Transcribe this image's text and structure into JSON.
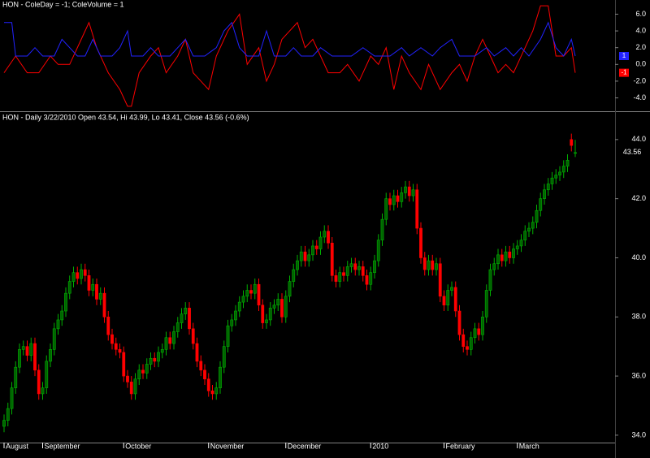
{
  "chart_data": [
    {
      "type": "line",
      "title": "HON - ColeDay = -1; ColeVolume = 1",
      "ylim": [
        -5.5,
        7.5
      ],
      "yticks": [
        {
          "value": 6,
          "label": "6.0"
        },
        {
          "value": 4,
          "label": "4.0"
        },
        {
          "value": 2,
          "label": "2.0"
        },
        {
          "value": 0,
          "label": "0.0"
        },
        {
          "value": -2,
          "label": "-2.0"
        },
        {
          "value": -4,
          "label": "-4.0"
        }
      ],
      "series": [
        {
          "color": "#ff0000",
          "x": [
            0,
            3,
            6,
            9,
            12,
            14,
            17,
            20,
            22,
            24,
            27,
            30,
            32,
            33,
            35,
            38,
            40,
            42,
            45,
            47,
            49,
            51,
            53,
            55,
            58,
            61,
            63,
            66,
            68,
            70,
            72,
            74,
            76,
            78,
            80,
            82,
            84,
            87,
            89,
            92,
            95,
            97,
            99,
            101,
            103,
            105,
            108,
            110,
            113,
            116,
            118,
            120,
            122,
            124,
            126,
            128,
            130,
            132,
            135,
            137,
            139,
            141,
            143,
            145,
            147,
            148
          ],
          "values": [
            -1,
            1,
            -1,
            -1,
            1,
            0,
            0,
            3,
            5,
            2,
            -1,
            -3,
            -5,
            -5,
            -1,
            1,
            2,
            -1,
            1,
            3,
            -1,
            -2,
            -3,
            1,
            4,
            6,
            0,
            2,
            -2,
            0,
            3,
            4,
            5,
            2,
            3,
            1,
            -1,
            -1,
            0,
            -2,
            1,
            0,
            2,
            -3,
            1,
            -1,
            -3,
            0,
            -3,
            -1,
            0,
            -2,
            1,
            3,
            1,
            -1,
            0,
            -1,
            2,
            4,
            7,
            7,
            1,
            1,
            2,
            -1
          ]
        },
        {
          "color": "#2222ff",
          "x": [
            0,
            2,
            3,
            6,
            8,
            10,
            13,
            15,
            17,
            19,
            21,
            23,
            25,
            28,
            30,
            32,
            33,
            36,
            38,
            40,
            43,
            45,
            47,
            49,
            52,
            55,
            57,
            59,
            61,
            63,
            66,
            68,
            70,
            73,
            75,
            77,
            80,
            82,
            85,
            90,
            93,
            96,
            100,
            103,
            105,
            108,
            111,
            113,
            116,
            118,
            122,
            125,
            127,
            130,
            132,
            134,
            136,
            139,
            141,
            143,
            145,
            147,
            148
          ],
          "values": [
            5,
            5,
            1,
            1,
            2,
            1,
            1,
            3,
            2,
            1,
            1,
            3,
            1,
            1,
            2,
            4,
            1,
            1,
            2,
            1,
            1,
            2,
            3,
            1,
            1,
            2,
            4,
            5,
            2,
            1,
            1,
            4,
            1,
            1,
            2,
            1,
            1,
            2,
            1,
            1,
            2,
            1,
            1,
            2,
            1,
            2,
            1,
            2,
            3,
            1,
            1,
            2,
            1,
            2,
            1,
            2,
            1,
            3,
            5,
            2,
            1,
            3,
            1
          ]
        }
      ]
    },
    {
      "type": "candlestick",
      "title": "HON - Daily 3/22/2010 Open 43.54, Hi 43.99, Lo 43.41, Close 43.56 (-0.6%)",
      "ylim": [
        33.75,
        44.93
      ],
      "yticks": [
        {
          "value": 34,
          "label": "34.0"
        },
        {
          "value": 36,
          "label": "36.0"
        },
        {
          "value": 38,
          "label": "38.0"
        },
        {
          "value": 40,
          "label": "40.0"
        },
        {
          "value": 42,
          "label": "42.0"
        },
        {
          "value": 44,
          "label": "44.0"
        }
      ],
      "up_color": "#00b000",
      "down_color": "#ff0000",
      "month_labels": [
        "August",
        "September",
        "October",
        "November",
        "December",
        "2010",
        "February",
        "March"
      ],
      "month_starts": [
        0,
        10,
        31,
        53,
        73,
        95,
        114,
        133
      ],
      "open": [
        34.3,
        34.5,
        34.9,
        35.6,
        36.3,
        36.9,
        37.0,
        36.7,
        37.1,
        36.2,
        35.4,
        35.6,
        36.5,
        36.9,
        37.6,
        37.9,
        38.2,
        38.8,
        39.2,
        39.5,
        39.3,
        39.6,
        39.4,
        38.9,
        39.1,
        38.6,
        38.8,
        38.0,
        37.4,
        37.1,
        36.9,
        36.8,
        36.0,
        35.8,
        35.4,
        35.9,
        36.2,
        36.1,
        36.4,
        36.6,
        36.5,
        36.8,
        36.9,
        37.3,
        37.1,
        37.5,
        37.8,
        38.1,
        38.3,
        37.6,
        37.1,
        36.5,
        36.2,
        35.9,
        35.5,
        35.4,
        35.6,
        36.3,
        37.0,
        37.7,
        37.9,
        38.2,
        38.5,
        38.7,
        38.9,
        38.8,
        39.1,
        38.4,
        37.8,
        37.9,
        38.3,
        38.4,
        38.6,
        38.0,
        38.7,
        39.2,
        39.6,
        39.9,
        40.2,
        39.9,
        40.1,
        40.4,
        40.3,
        40.7,
        40.9,
        40.5,
        39.4,
        39.2,
        39.5,
        39.4,
        39.7,
        39.8,
        39.6,
        39.7,
        39.4,
        39.1,
        39.5,
        39.9,
        40.6,
        41.3,
        42.0,
        41.8,
        42.1,
        41.9,
        42.2,
        42.4,
        42.1,
        42.3,
        41.0,
        40.0,
        39.6,
        39.9,
        39.6,
        39.8,
        38.7,
        38.4,
        38.9,
        39.0,
        38.2,
        37.4,
        37.0,
        36.9,
        37.3,
        37.6,
        37.4,
        38.0,
        38.9,
        39.6,
        39.8,
        40.1,
        39.9,
        40.2,
        40.0,
        40.3,
        40.4,
        40.6,
        40.9,
        41.0,
        41.2,
        41.6,
        42.0,
        42.3,
        42.5,
        42.7,
        42.8,
        42.9,
        43.1,
        44.0,
        43.54
      ],
      "high": [
        34.7,
        35.1,
        35.8,
        36.5,
        37.1,
        37.2,
        37.2,
        37.3,
        37.3,
        36.4,
        35.8,
        36.7,
        37.1,
        37.8,
        38.1,
        38.4,
        39.0,
        39.4,
        39.7,
        39.7,
        39.8,
        39.8,
        39.6,
        39.3,
        39.3,
        39.0,
        39.0,
        38.2,
        37.6,
        37.3,
        37.1,
        37.0,
        36.2,
        36.0,
        36.1,
        36.4,
        36.4,
        36.6,
        36.8,
        36.8,
        37.0,
        37.1,
        37.5,
        37.5,
        37.7,
        38.0,
        38.3,
        38.5,
        38.5,
        37.8,
        37.3,
        36.7,
        36.4,
        36.1,
        35.7,
        35.8,
        36.5,
        37.2,
        37.9,
        38.1,
        38.4,
        38.7,
        38.9,
        39.1,
        39.1,
        39.3,
        39.3,
        38.6,
        38.1,
        38.5,
        38.6,
        38.8,
        38.8,
        38.9,
        39.4,
        39.8,
        40.1,
        40.4,
        40.4,
        40.3,
        40.6,
        40.6,
        40.9,
        41.1,
        41.1,
        40.7,
        39.6,
        39.7,
        39.7,
        39.9,
        40.0,
        40.0,
        39.9,
        39.9,
        39.6,
        39.7,
        40.1,
        40.8,
        41.5,
        42.2,
        42.2,
        42.3,
        42.3,
        42.4,
        42.6,
        42.6,
        42.5,
        42.5,
        41.2,
        40.2,
        40.1,
        40.1,
        40.0,
        40.0,
        38.9,
        39.1,
        39.2,
        39.2,
        38.4,
        37.6,
        37.2,
        37.5,
        37.8,
        37.8,
        38.2,
        39.1,
        39.8,
        40.0,
        40.3,
        40.3,
        40.4,
        40.4,
        40.5,
        40.6,
        40.8,
        41.1,
        41.2,
        41.4,
        41.8,
        42.2,
        42.5,
        42.7,
        42.9,
        43.0,
        43.1,
        43.3,
        43.5,
        44.2,
        43.99
      ],
      "low": [
        34.1,
        34.3,
        34.7,
        35.4,
        36.1,
        36.7,
        36.5,
        36.5,
        36.0,
        35.2,
        35.2,
        35.4,
        36.3,
        36.7,
        37.4,
        37.7,
        38.0,
        38.6,
        39.0,
        39.1,
        39.1,
        39.2,
        38.7,
        38.7,
        38.4,
        38.4,
        37.8,
        37.2,
        36.9,
        36.7,
        36.6,
        35.8,
        35.6,
        35.2,
        35.2,
        35.7,
        35.9,
        35.9,
        36.2,
        36.3,
        36.3,
        36.6,
        36.7,
        36.9,
        36.9,
        37.3,
        37.6,
        37.9,
        37.4,
        36.9,
        36.3,
        36.0,
        35.7,
        35.3,
        35.2,
        35.2,
        35.4,
        36.1,
        36.8,
        37.5,
        37.7,
        38.0,
        38.3,
        38.5,
        38.6,
        38.6,
        38.2,
        37.6,
        37.6,
        37.7,
        38.1,
        38.2,
        37.8,
        37.8,
        38.5,
        39.0,
        39.4,
        39.7,
        39.7,
        39.7,
        39.9,
        40.1,
        40.1,
        40.5,
        40.3,
        39.2,
        39.0,
        39.0,
        39.2,
        39.2,
        39.5,
        39.4,
        39.4,
        39.2,
        38.9,
        38.9,
        39.3,
        39.7,
        40.4,
        41.1,
        41.6,
        41.6,
        41.7,
        41.7,
        42.0,
        41.9,
        41.9,
        40.8,
        39.8,
        39.4,
        39.4,
        39.4,
        39.4,
        38.5,
        38.2,
        38.2,
        38.7,
        38.0,
        37.2,
        36.8,
        36.7,
        36.7,
        37.1,
        37.2,
        37.2,
        37.8,
        38.7,
        39.4,
        39.6,
        39.7,
        39.7,
        39.8,
        39.8,
        40.1,
        40.2,
        40.4,
        40.7,
        40.8,
        41.0,
        41.4,
        41.8,
        42.1,
        42.3,
        42.5,
        42.6,
        42.7,
        42.9,
        43.6,
        43.41
      ],
      "close": [
        34.5,
        34.9,
        35.6,
        36.3,
        36.9,
        37.0,
        36.7,
        37.1,
        36.2,
        35.4,
        35.6,
        36.5,
        36.9,
        37.6,
        37.9,
        38.2,
        38.8,
        39.2,
        39.5,
        39.3,
        39.6,
        39.4,
        38.9,
        39.1,
        38.6,
        38.8,
        38.0,
        37.4,
        37.1,
        36.9,
        36.8,
        36.0,
        35.8,
        35.4,
        35.9,
        36.2,
        36.1,
        36.4,
        36.6,
        36.5,
        36.8,
        36.9,
        37.3,
        37.1,
        37.5,
        37.8,
        38.1,
        38.3,
        37.6,
        37.1,
        36.5,
        36.2,
        35.9,
        35.5,
        35.4,
        35.6,
        36.3,
        37.0,
        37.7,
        37.9,
        38.2,
        38.5,
        38.7,
        38.9,
        38.8,
        39.1,
        38.4,
        37.8,
        37.9,
        38.3,
        38.4,
        38.6,
        38.0,
        38.7,
        39.2,
        39.6,
        39.9,
        40.2,
        39.9,
        40.1,
        40.4,
        40.3,
        40.7,
        40.9,
        40.5,
        39.4,
        39.2,
        39.5,
        39.4,
        39.7,
        39.8,
        39.6,
        39.7,
        39.4,
        39.1,
        39.5,
        39.9,
        40.6,
        41.3,
        42.0,
        41.8,
        42.1,
        41.9,
        42.2,
        42.4,
        42.1,
        42.3,
        41.0,
        40.0,
        39.6,
        39.9,
        39.6,
        39.8,
        38.7,
        38.4,
        38.9,
        39.0,
        38.2,
        37.4,
        37.0,
        36.9,
        37.3,
        37.6,
        37.4,
        38.0,
        38.9,
        39.6,
        39.8,
        40.1,
        39.9,
        40.2,
        40.0,
        40.3,
        40.4,
        40.6,
        40.9,
        41.0,
        41.2,
        41.6,
        42.0,
        42.3,
        42.5,
        42.7,
        42.8,
        42.9,
        43.1,
        43.3,
        43.8,
        43.56
      ]
    }
  ]
}
